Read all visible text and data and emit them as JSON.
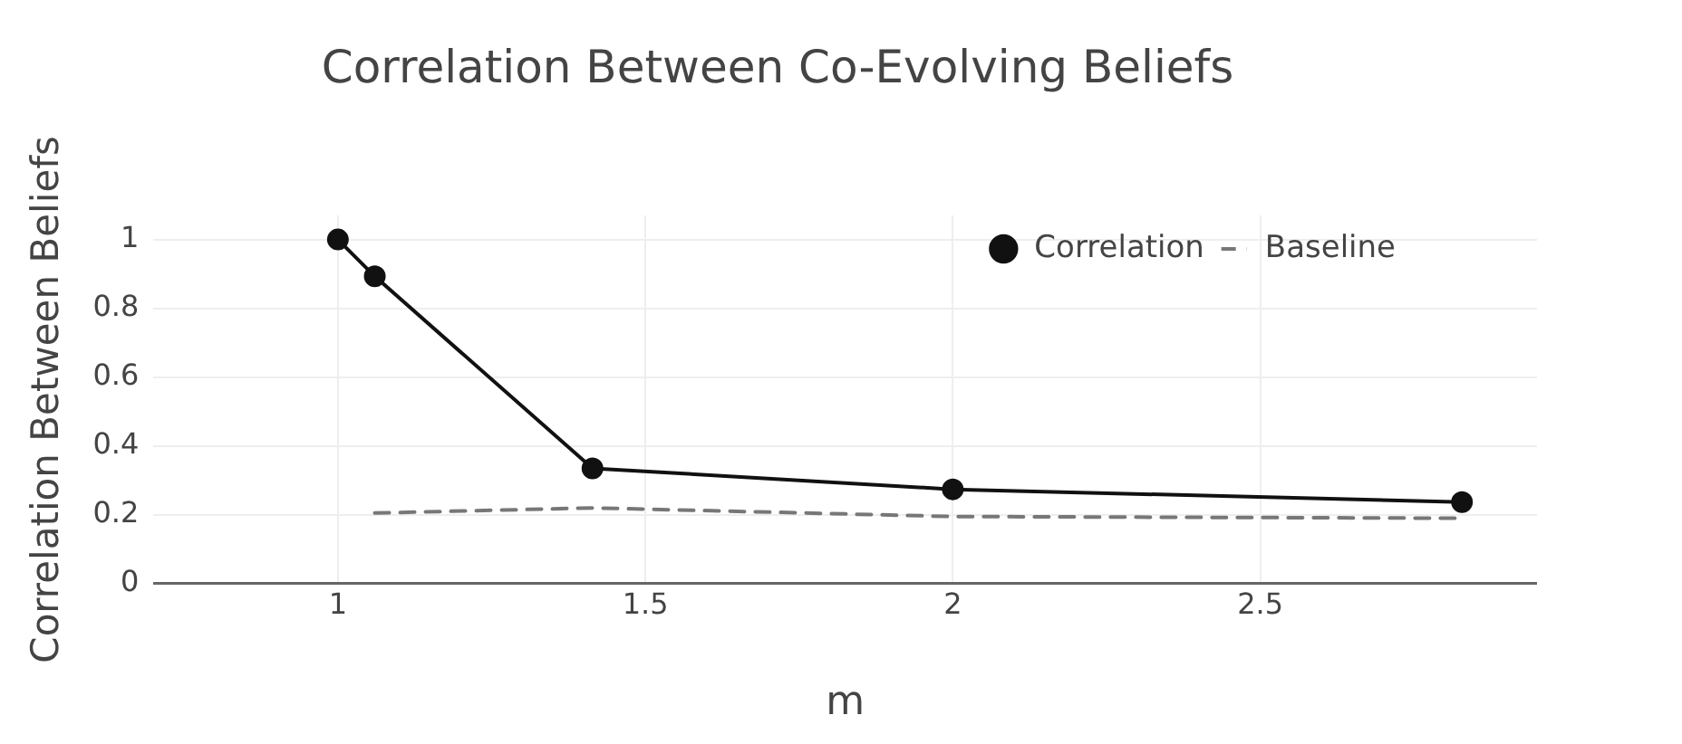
{
  "chart_data": {
    "type": "line",
    "title": "Correlation Between Co-Evolving Beliefs",
    "xlabel": "m",
    "ylabel": "Correlation Between Beliefs",
    "xlim": [
      0.7,
      2.95
    ],
    "xticks": [
      1,
      1.5,
      2,
      2.5
    ],
    "ylim": [
      0,
      1.07
    ],
    "yticks": [
      0,
      0.2,
      0.4,
      0.6,
      0.8,
      1
    ],
    "grid": true,
    "legend": "top right",
    "series": [
      {
        "name": "Correlation",
        "color": "#111111",
        "marker": "circle",
        "line_style": "solid",
        "x": [
          1,
          1.06,
          1.414,
          2,
          2.828
        ],
        "values": [
          1,
          0.893,
          0.335,
          0.274,
          0.237
        ]
      },
      {
        "name": "Baseline",
        "color": "#777777",
        "marker": "none",
        "line_style": "dashed",
        "x": [
          1.06,
          1.414,
          2,
          2.828
        ],
        "values": [
          0.205,
          0.22,
          0.195,
          0.19
        ]
      }
    ]
  }
}
